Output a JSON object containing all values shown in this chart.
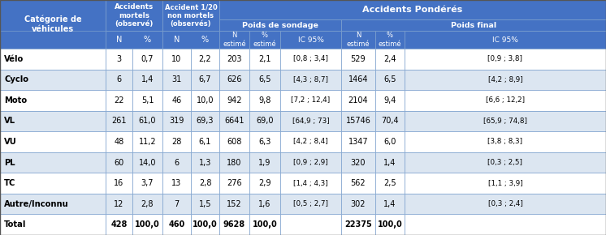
{
  "row_labels": [
    "Vélo",
    "Cyclo",
    "Moto",
    "VL",
    "VU",
    "PL",
    "TC",
    "Autre/Inconnu",
    "Total"
  ],
  "col2_N": [
    "3",
    "6",
    "22",
    "261",
    "48",
    "60",
    "16",
    "12",
    "428"
  ],
  "col2_pct": [
    "0,7",
    "1,4",
    "5,1",
    "61,0",
    "11,2",
    "14,0",
    "3,7",
    "2,8",
    "100,0"
  ],
  "col3_N": [
    "10",
    "31",
    "46",
    "319",
    "28",
    "6",
    "13",
    "7",
    "460"
  ],
  "col3_pct": [
    "2,2",
    "6,7",
    "10,0",
    "69,3",
    "6,1",
    "1,3",
    "2,8",
    "1,5",
    "100,0"
  ],
  "sondage_N": [
    "203",
    "626",
    "942",
    "6641",
    "608",
    "180",
    "276",
    "152",
    "9628"
  ],
  "sondage_pct": [
    "2,1",
    "6,5",
    "9,8",
    "69,0",
    "6,3",
    "1,9",
    "2,9",
    "1,6",
    "100,0"
  ],
  "sondage_ic": [
    "[0,8 ; 3,4]",
    "[4,3 ; 8,7]",
    "[7,2 ; 12,4]",
    "[64,9 ; 73]",
    "[4,2 ; 8,4]",
    "[0,9 ; 2,9]",
    "[1,4 ; 4,3]",
    "[0,5 ; 2,7]",
    ""
  ],
  "final_N": [
    "529",
    "1464",
    "2104",
    "15746",
    "1347",
    "320",
    "562",
    "302",
    "22375"
  ],
  "final_pct": [
    "2,4",
    "6,5",
    "9,4",
    "70,4",
    "6,0",
    "1,4",
    "2,5",
    "1,4",
    "100,0"
  ],
  "final_ic": [
    "[0,9 ; 3,8]",
    "[4,2 ; 8,9]",
    "[6,6 ; 12,2]",
    "[65,9 ; 74,8]",
    "[3,8 ; 8,3]",
    "[0,3 ; 2,5]",
    "[1,1 ; 3,9]",
    "[0,3 ; 2,4]",
    ""
  ],
  "header_bg": "#4472C4",
  "header_text": "#ffffff",
  "row_odd_bg": "#ffffff",
  "row_even_bg": "#dce6f1",
  "text_dark": "#000000",
  "border_color": "#7ba0cd"
}
